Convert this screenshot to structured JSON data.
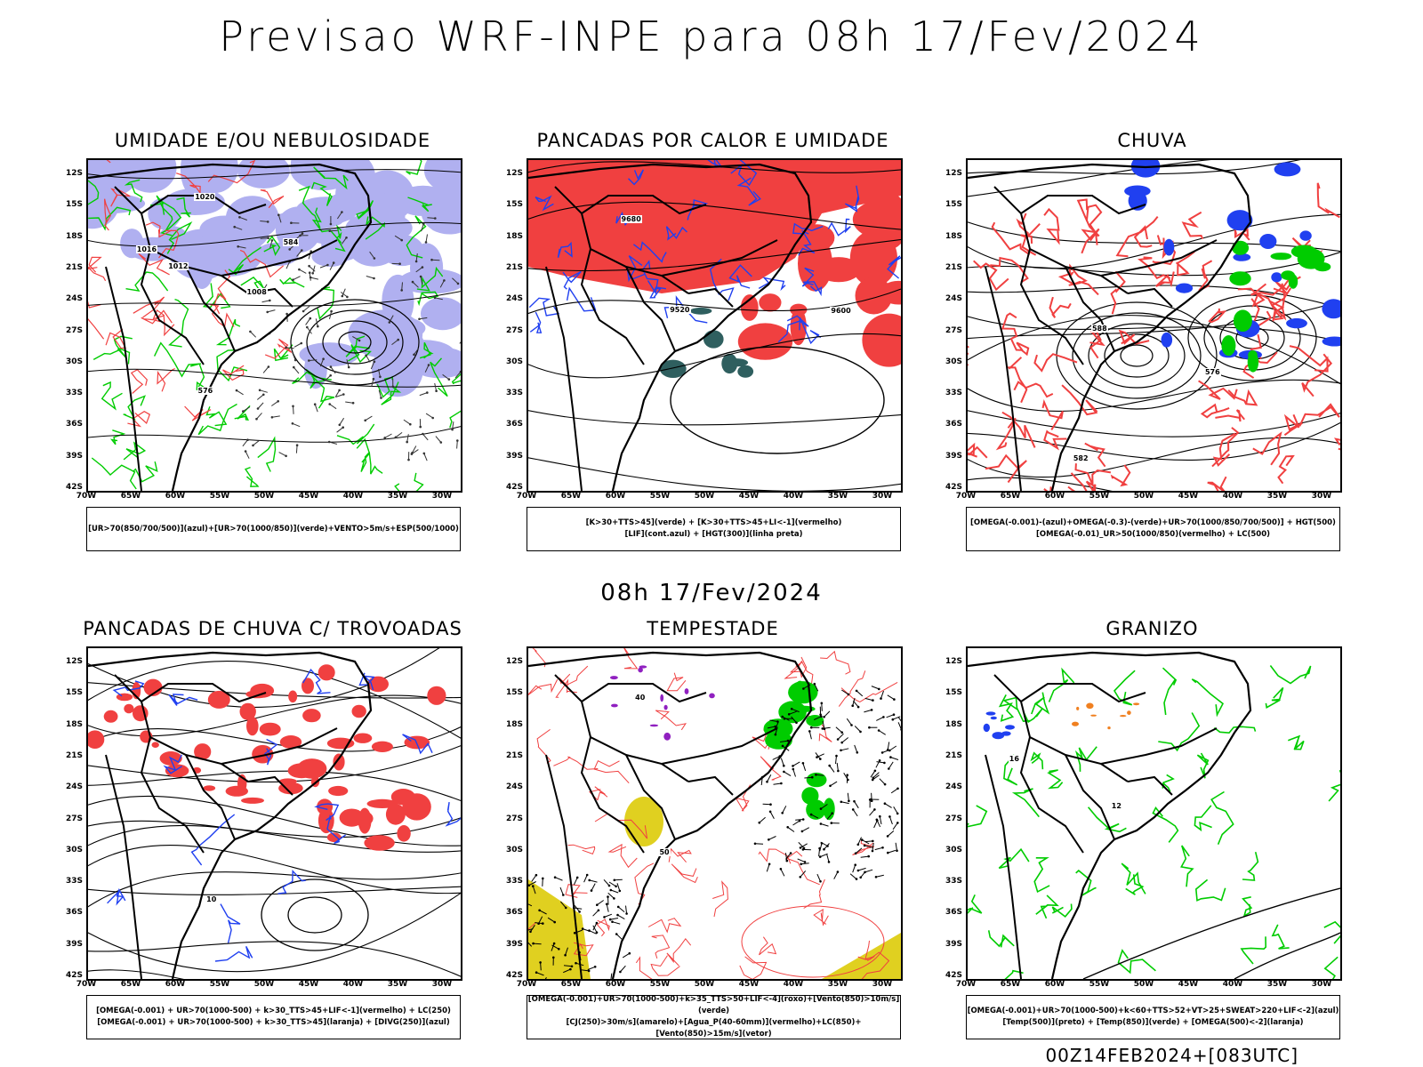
{
  "title": "Previsao WRF-INPE  para 08h 17/Fev/2024",
  "mid_title": "08h 17/Fev/2024",
  "footer": "00Z14FEB2024+[083UTC]",
  "lat_labels": [
    "12S",
    "15S",
    "18S",
    "21S",
    "24S",
    "27S",
    "30S",
    "33S",
    "36S",
    "39S",
    "42S"
  ],
  "lon_labels": [
    "70W",
    "65W",
    "60W",
    "55W",
    "50W",
    "45W",
    "40W",
    "35W",
    "30W"
  ],
  "colors": {
    "humid_blue": "#b0b0f0",
    "green": "#00cc00",
    "red": "#f04040",
    "blue": "#2040f0",
    "yellow": "#e0d020",
    "orange": "#f08020",
    "purple": "#9020c0"
  },
  "panels": [
    {
      "title": "UMIDADE E/OU NEBULOSIDADE",
      "caption": [
        "[UR>70(850/700/500)](azul)+[UR>70(1000/850)](verde)+VENTO>5m/s+ESP(500/1000)"
      ],
      "contour_labels": [
        "1012",
        "1016",
        "1008",
        "1020",
        "576",
        "584"
      ]
    },
    {
      "title": "PANCADAS POR CALOR E UMIDADE",
      "caption": [
        "[K>30+TTS>45](verde) + [K>30+TTS>45+LI<-1](vermelho)",
        "[LIF](cont.azul) + [HGT(300)](linha preta)"
      ],
      "contour_labels": [
        "9680",
        "9600",
        "9520"
      ]
    },
    {
      "title": "CHUVA",
      "caption": [
        "[OMEGA(-0.001)-(azul)+OMEGA(-0.3)-(verde)+UR>70(1000/850/700/500)] + HGT(500)",
        "[OMEGA(-0.01)_UR>50(1000/850)(vermelho) + LC(500)"
      ],
      "contour_labels": [
        "582",
        "576",
        "588"
      ]
    },
    {
      "title": "PANCADAS DE CHUVA C/ TROVOADAS",
      "caption": [
        "[OMEGA(-0.001) + UR>70(1000-500) + k>30_TTS>45+LIF<-1](vermelho) + LC(250)",
        "[OMEGA(-0.001) + UR>70(1000-500) + k>30_TTS>45](laranja) + [DIVG(250)](azul)"
      ],
      "contour_labels": [
        "10"
      ]
    },
    {
      "title": "TEMPESTADE",
      "caption": [
        "[OMEGA(-0.001)+UR>70(1000-500)+k>35_TTS>50+LIF<-4](roxo)+[Vento(850)>10m/s](verde)",
        "[CJ(250)>30m/s](amarelo)+[Agua_P(40-60mm)](vermelho)+LC(850)+[Vento(850)>15m/s](vetor)"
      ],
      "contour_labels": [
        "50",
        "40"
      ]
    },
    {
      "title": "GRANIZO",
      "caption": [
        "[OMEGA(-0.001)+UR>70(1000-500)+k<60+TTS>52+VT>25+SWEAT>220+LIF<-2](azul)",
        "[Temp(500)](preto) + [Temp(850)](verde) + [OMEGA(500)<-2](laranja)"
      ],
      "contour_labels": [
        "12",
        "16"
      ]
    }
  ]
}
